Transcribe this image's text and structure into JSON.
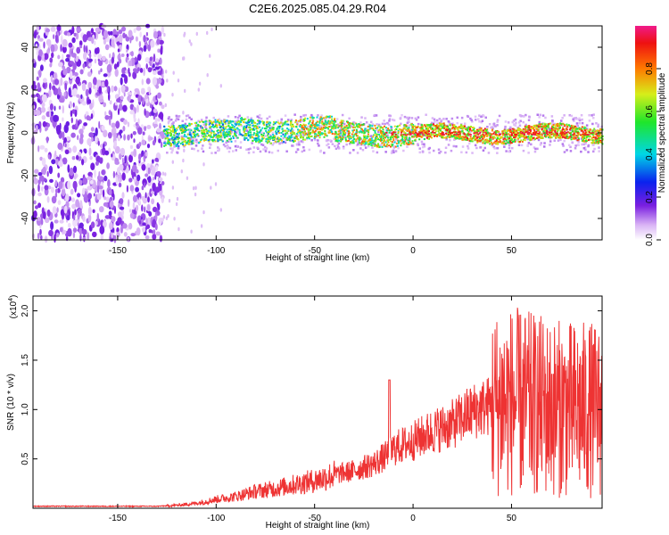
{
  "title": "C2E6.2025.085.04.29.R04",
  "chart_data": [
    {
      "type": "heatmap",
      "xlabel": "Height of straight line (km)",
      "ylabel": "Frequency (Hz)",
      "xlim": [
        -193,
        96
      ],
      "ylim": [
        -50,
        50
      ],
      "xticks": [
        -150,
        -100,
        -50,
        0,
        50
      ],
      "xtick_labels": [
        "-150",
        "-100",
        "-50",
        "0",
        "50"
      ],
      "yticks": [
        -40,
        -20,
        0,
        20,
        40
      ],
      "ytick_labels": [
        "-40",
        "-20",
        "0",
        "20",
        "40"
      ],
      "colorbar": {
        "label": "Normalized spectral amplitude",
        "range": [
          0,
          1
        ],
        "ticks": [
          0.0,
          0.2,
          0.4,
          0.6,
          0.8
        ],
        "tick_labels": [
          "0.0",
          "0.2",
          "0.4",
          "0.6",
          "0.8"
        ],
        "colormap": "rainbow"
      },
      "regions": [
        {
          "x_range": [
            -193,
            -127
          ],
          "description": "scattered noise",
          "amplitude": 0.1
        },
        {
          "x_range": [
            -127,
            96
          ],
          "frequency_center": 0,
          "description": "signal band",
          "amplitude_peak": 1.0
        }
      ],
      "grid": false
    },
    {
      "type": "line",
      "xlabel": "Height of straight line (km)",
      "ylabel": "SNR (10 * v/v)",
      "multiplier_label": "(x10",
      "multiplier_exp": "4",
      "multiplier_close": ")",
      "xlim": [
        -193,
        96
      ],
      "ylim": [
        0,
        2.15
      ],
      "xticks": [
        -150,
        -100,
        -50,
        0,
        50
      ],
      "xtick_labels": [
        "-150",
        "-100",
        "-50",
        "0",
        "50"
      ],
      "yticks": [
        0.5,
        1.0,
        1.5,
        2.0
      ],
      "ytick_labels": [
        "0.5",
        "1.0",
        "1.5",
        "2.0"
      ],
      "color": "#ee3333",
      "trend_x": [
        -193,
        -130,
        -120,
        -110,
        -100,
        -90,
        -80,
        -70,
        -60,
        -50,
        -40,
        -30,
        -20,
        -12,
        -10,
        0,
        10,
        20,
        30,
        40,
        50,
        60,
        70,
        80,
        90,
        96
      ],
      "trend_y": [
        0.02,
        0.02,
        0.03,
        0.05,
        0.09,
        0.12,
        0.17,
        0.2,
        0.24,
        0.28,
        0.34,
        0.38,
        0.45,
        0.55,
        0.6,
        0.68,
        0.78,
        0.85,
        0.98,
        1.05,
        1.08,
        1.05,
        1.02,
        1.0,
        1.0,
        0.98
      ],
      "spike_x": -12,
      "spike_y": 1.3,
      "grid": false
    }
  ]
}
